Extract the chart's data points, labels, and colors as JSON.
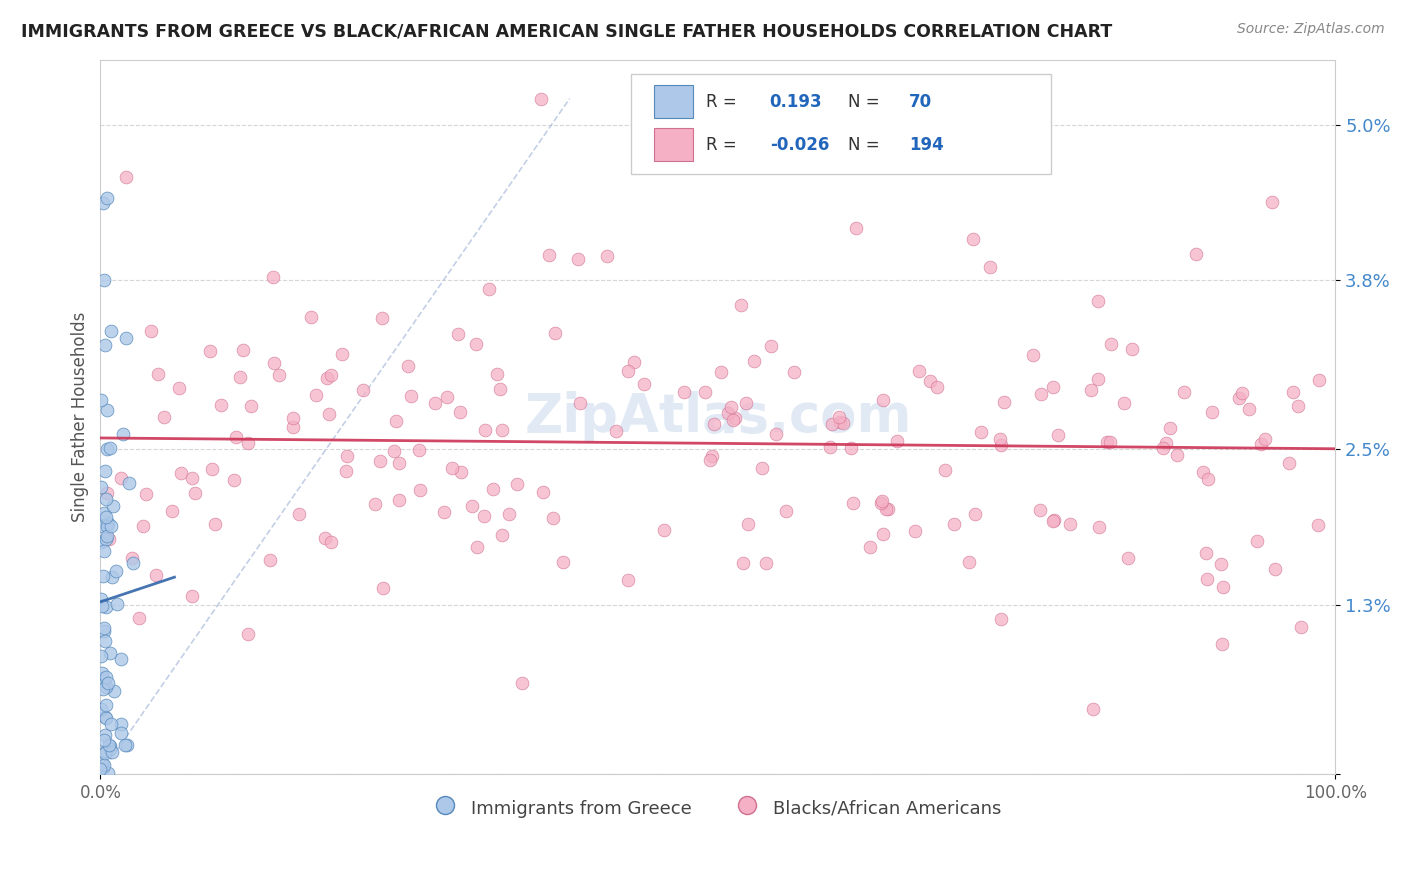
{
  "title": "IMMIGRANTS FROM GREECE VS BLACK/AFRICAN AMERICAN SINGLE FATHER HOUSEHOLDS CORRELATION CHART",
  "source": "Source: ZipAtlas.com",
  "ylabel": "Single Father Households",
  "y_ticks": [
    0.0,
    0.013,
    0.025,
    0.038,
    0.05
  ],
  "y_tick_labels": [
    "",
    "1.3%",
    "2.5%",
    "3.8%",
    "5.0%"
  ],
  "legend_blue_r": "0.193",
  "legend_blue_n": "70",
  "legend_pink_r": "-0.026",
  "legend_pink_n": "194",
  "legend_label_blue": "Immigrants from Greece",
  "legend_label_pink": "Blacks/African Americans",
  "blue_color": "#adc8e8",
  "blue_edge": "#5588bb",
  "pink_color": "#f5b0c5",
  "pink_edge": "#d07090",
  "trend_blue_color": "#3366aa",
  "trend_pink_color": "#cc3355",
  "diag_color": "#aabbdd",
  "background_color": "#ffffff",
  "title_color": "#222222",
  "source_color": "#888888",
  "ytick_color": "#4488cc",
  "blue_n": 70,
  "pink_n": 194,
  "marker_size": 85,
  "xlim_max": 1.0,
  "ylim_max": 0.055
}
